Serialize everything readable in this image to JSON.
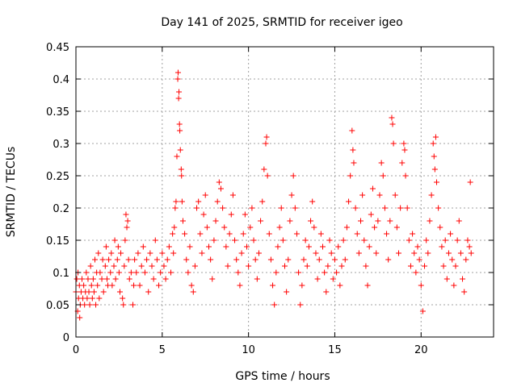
{
  "chart_data": {
    "type": "scatter",
    "title": "Day 141 of 2025, SRMTID for receiver igeo",
    "xlabel": "GPS time / hours",
    "ylabel": "SRMTID / TECUs",
    "xlim": [
      0,
      24.2
    ],
    "ylim": [
      0,
      0.45
    ],
    "xticks": [
      0,
      5,
      10,
      15,
      20
    ],
    "xtick_labels": [
      "0",
      "5",
      "10",
      "15",
      "20"
    ],
    "yticks": [
      0,
      0.05,
      0.1,
      0.15,
      0.2,
      0.25,
      0.3,
      0.35,
      0.4,
      0.45
    ],
    "ytick_labels": [
      "0",
      "0.05",
      "0.1",
      "0.15",
      "0.2",
      "0.25",
      "0.3",
      "0.35",
      "0.4",
      "0.45"
    ],
    "grid": true,
    "marker": "plus",
    "color": "#ff0000",
    "series": [
      {
        "name": "SRMTID",
        "points": [
          [
            0.0,
            0.07
          ],
          [
            0.05,
            0.09
          ],
          [
            0.1,
            0.04
          ],
          [
            0.12,
            0.1
          ],
          [
            0.15,
            0.06
          ],
          [
            0.2,
            0.08
          ],
          [
            0.22,
            0.03
          ],
          [
            0.25,
            0.05
          ],
          [
            0.3,
            0.07
          ],
          [
            0.35,
            0.09
          ],
          [
            0.4,
            0.06
          ],
          [
            0.45,
            0.08
          ],
          [
            0.5,
            0.05
          ],
          [
            0.55,
            0.07
          ],
          [
            0.6,
            0.1
          ],
          [
            0.65,
            0.06
          ],
          [
            0.7,
            0.09
          ],
          [
            0.75,
            0.07
          ],
          [
            0.8,
            0.05
          ],
          [
            0.85,
            0.11
          ],
          [
            0.9,
            0.08
          ],
          [
            0.95,
            0.06
          ],
          [
            1.0,
            0.09
          ],
          [
            1.05,
            0.07
          ],
          [
            1.1,
            0.12
          ],
          [
            1.15,
            0.05
          ],
          [
            1.2,
            0.1
          ],
          [
            1.25,
            0.08
          ],
          [
            1.3,
            0.13
          ],
          [
            1.35,
            0.06
          ],
          [
            1.4,
            0.1
          ],
          [
            1.5,
            0.09
          ],
          [
            1.55,
            0.12
          ],
          [
            1.6,
            0.07
          ],
          [
            1.7,
            0.11
          ],
          [
            1.75,
            0.14
          ],
          [
            1.8,
            0.09
          ],
          [
            1.85,
            0.08
          ],
          [
            1.9,
            0.12
          ],
          [
            2.0,
            0.1
          ],
          [
            2.05,
            0.13
          ],
          [
            2.1,
            0.08
          ],
          [
            2.2,
            0.11
          ],
          [
            2.25,
            0.15
          ],
          [
            2.3,
            0.09
          ],
          [
            2.4,
            0.12
          ],
          [
            2.45,
            0.14
          ],
          [
            2.5,
            0.1
          ],
          [
            2.55,
            0.07
          ],
          [
            2.6,
            0.13
          ],
          [
            2.7,
            0.06
          ],
          [
            2.75,
            0.05
          ],
          [
            2.8,
            0.11
          ],
          [
            2.85,
            0.15
          ],
          [
            2.9,
            0.19
          ],
          [
            2.95,
            0.17
          ],
          [
            3.0,
            0.18
          ],
          [
            3.05,
            0.12
          ],
          [
            3.1,
            0.09
          ],
          [
            3.2,
            0.1
          ],
          [
            3.3,
            0.05
          ],
          [
            3.35,
            0.08
          ],
          [
            3.4,
            0.12
          ],
          [
            3.5,
            0.1
          ],
          [
            3.6,
            0.13
          ],
          [
            3.7,
            0.08
          ],
          [
            3.8,
            0.11
          ],
          [
            3.9,
            0.14
          ],
          [
            4.0,
            0.1
          ],
          [
            4.1,
            0.12
          ],
          [
            4.2,
            0.07
          ],
          [
            4.3,
            0.13
          ],
          [
            4.4,
            0.11
          ],
          [
            4.5,
            0.09
          ],
          [
            4.6,
            0.15
          ],
          [
            4.7,
            0.12
          ],
          [
            4.8,
            0.08
          ],
          [
            4.9,
            0.1
          ],
          [
            5.0,
            0.13
          ],
          [
            5.1,
            0.11
          ],
          [
            5.2,
            0.09
          ],
          [
            5.3,
            0.12
          ],
          [
            5.4,
            0.14
          ],
          [
            5.5,
            0.1
          ],
          [
            5.6,
            0.16
          ],
          [
            5.65,
            0.13
          ],
          [
            5.7,
            0.17
          ],
          [
            5.75,
            0.2
          ],
          [
            5.8,
            0.21
          ],
          [
            5.85,
            0.28
          ],
          [
            5.9,
            0.4
          ],
          [
            5.92,
            0.41
          ],
          [
            5.95,
            0.37
          ],
          [
            5.97,
            0.38
          ],
          [
            6.0,
            0.33
          ],
          [
            6.02,
            0.32
          ],
          [
            6.05,
            0.29
          ],
          [
            6.1,
            0.26
          ],
          [
            6.12,
            0.25
          ],
          [
            6.15,
            0.21
          ],
          [
            6.2,
            0.18
          ],
          [
            6.3,
            0.16
          ],
          [
            6.4,
            0.12
          ],
          [
            6.5,
            0.1
          ],
          [
            6.6,
            0.14
          ],
          [
            6.7,
            0.08
          ],
          [
            6.8,
            0.07
          ],
          [
            6.9,
            0.11
          ],
          [
            7.0,
            0.2
          ],
          [
            7.1,
            0.21
          ],
          [
            7.2,
            0.16
          ],
          [
            7.3,
            0.13
          ],
          [
            7.4,
            0.19
          ],
          [
            7.5,
            0.22
          ],
          [
            7.6,
            0.17
          ],
          [
            7.7,
            0.14
          ],
          [
            7.8,
            0.12
          ],
          [
            7.9,
            0.09
          ],
          [
            8.0,
            0.15
          ],
          [
            8.1,
            0.18
          ],
          [
            8.2,
            0.21
          ],
          [
            8.3,
            0.24
          ],
          [
            8.4,
            0.23
          ],
          [
            8.5,
            0.2
          ],
          [
            8.6,
            0.17
          ],
          [
            8.7,
            0.14
          ],
          [
            8.8,
            0.11
          ],
          [
            8.9,
            0.16
          ],
          [
            9.0,
            0.19
          ],
          [
            9.1,
            0.22
          ],
          [
            9.2,
            0.15
          ],
          [
            9.3,
            0.12
          ],
          [
            9.4,
            0.1
          ],
          [
            9.5,
            0.08
          ],
          [
            9.6,
            0.13
          ],
          [
            9.7,
            0.16
          ],
          [
            9.8,
            0.19
          ],
          [
            9.9,
            0.14
          ],
          [
            10.0,
            0.11
          ],
          [
            10.1,
            0.17
          ],
          [
            10.2,
            0.2
          ],
          [
            10.3,
            0.15
          ],
          [
            10.4,
            0.12
          ],
          [
            10.5,
            0.09
          ],
          [
            10.6,
            0.13
          ],
          [
            10.7,
            0.18
          ],
          [
            10.8,
            0.21
          ],
          [
            10.9,
            0.26
          ],
          [
            11.0,
            0.3
          ],
          [
            11.05,
            0.31
          ],
          [
            11.1,
            0.25
          ],
          [
            11.2,
            0.16
          ],
          [
            11.3,
            0.12
          ],
          [
            11.4,
            0.08
          ],
          [
            11.5,
            0.05
          ],
          [
            11.6,
            0.1
          ],
          [
            11.7,
            0.14
          ],
          [
            11.8,
            0.17
          ],
          [
            11.9,
            0.2
          ],
          [
            12.0,
            0.15
          ],
          [
            12.1,
            0.11
          ],
          [
            12.2,
            0.07
          ],
          [
            12.3,
            0.12
          ],
          [
            12.4,
            0.18
          ],
          [
            12.5,
            0.22
          ],
          [
            12.6,
            0.25
          ],
          [
            12.7,
            0.2
          ],
          [
            12.8,
            0.16
          ],
          [
            12.9,
            0.1
          ],
          [
            13.0,
            0.05
          ],
          [
            13.1,
            0.08
          ],
          [
            13.2,
            0.12
          ],
          [
            13.3,
            0.15
          ],
          [
            13.4,
            0.11
          ],
          [
            13.5,
            0.14
          ],
          [
            13.6,
            0.18
          ],
          [
            13.7,
            0.21
          ],
          [
            13.8,
            0.17
          ],
          [
            13.9,
            0.13
          ],
          [
            14.0,
            0.09
          ],
          [
            14.1,
            0.12
          ],
          [
            14.2,
            0.16
          ],
          [
            14.3,
            0.14
          ],
          [
            14.4,
            0.1
          ],
          [
            14.5,
            0.07
          ],
          [
            14.6,
            0.11
          ],
          [
            14.7,
            0.15
          ],
          [
            14.8,
            0.13
          ],
          [
            14.9,
            0.09
          ],
          [
            15.0,
            0.12
          ],
          [
            15.1,
            0.1
          ],
          [
            15.2,
            0.14
          ],
          [
            15.3,
            0.08
          ],
          [
            15.4,
            0.11
          ],
          [
            15.5,
            0.15
          ],
          [
            15.6,
            0.12
          ],
          [
            15.7,
            0.17
          ],
          [
            15.8,
            0.21
          ],
          [
            15.9,
            0.25
          ],
          [
            16.0,
            0.32
          ],
          [
            16.05,
            0.29
          ],
          [
            16.1,
            0.27
          ],
          [
            16.2,
            0.2
          ],
          [
            16.3,
            0.16
          ],
          [
            16.4,
            0.13
          ],
          [
            16.5,
            0.18
          ],
          [
            16.6,
            0.22
          ],
          [
            16.7,
            0.15
          ],
          [
            16.8,
            0.11
          ],
          [
            16.9,
            0.08
          ],
          [
            17.0,
            0.14
          ],
          [
            17.1,
            0.19
          ],
          [
            17.2,
            0.23
          ],
          [
            17.3,
            0.17
          ],
          [
            17.4,
            0.13
          ],
          [
            17.5,
            0.18
          ],
          [
            17.6,
            0.22
          ],
          [
            17.7,
            0.27
          ],
          [
            17.8,
            0.25
          ],
          [
            17.9,
            0.2
          ],
          [
            18.0,
            0.16
          ],
          [
            18.1,
            0.12
          ],
          [
            18.2,
            0.18
          ],
          [
            18.3,
            0.34
          ],
          [
            18.35,
            0.33
          ],
          [
            18.4,
            0.3
          ],
          [
            18.5,
            0.22
          ],
          [
            18.6,
            0.17
          ],
          [
            18.7,
            0.13
          ],
          [
            18.8,
            0.2
          ],
          [
            18.9,
            0.27
          ],
          [
            19.0,
            0.3
          ],
          [
            19.05,
            0.29
          ],
          [
            19.1,
            0.25
          ],
          [
            19.2,
            0.2
          ],
          [
            19.3,
            0.15
          ],
          [
            19.4,
            0.11
          ],
          [
            19.5,
            0.16
          ],
          [
            19.6,
            0.13
          ],
          [
            19.7,
            0.1
          ],
          [
            19.8,
            0.14
          ],
          [
            19.9,
            0.12
          ],
          [
            20.0,
            0.08
          ],
          [
            20.1,
            0.04
          ],
          [
            20.2,
            0.11
          ],
          [
            20.3,
            0.15
          ],
          [
            20.4,
            0.13
          ],
          [
            20.5,
            0.18
          ],
          [
            20.6,
            0.22
          ],
          [
            20.7,
            0.3
          ],
          [
            20.75,
            0.28
          ],
          [
            20.8,
            0.26
          ],
          [
            20.85,
            0.31
          ],
          [
            20.9,
            0.24
          ],
          [
            21.0,
            0.2
          ],
          [
            21.1,
            0.17
          ],
          [
            21.2,
            0.14
          ],
          [
            21.3,
            0.11
          ],
          [
            21.4,
            0.15
          ],
          [
            21.5,
            0.09
          ],
          [
            21.6,
            0.13
          ],
          [
            21.7,
            0.16
          ],
          [
            21.8,
            0.12
          ],
          [
            21.9,
            0.08
          ],
          [
            22.0,
            0.11
          ],
          [
            22.1,
            0.15
          ],
          [
            22.2,
            0.18
          ],
          [
            22.3,
            0.13
          ],
          [
            22.4,
            0.09
          ],
          [
            22.5,
            0.07
          ],
          [
            22.6,
            0.12
          ],
          [
            22.7,
            0.15
          ],
          [
            22.8,
            0.14
          ],
          [
            22.85,
            0.24
          ],
          [
            22.9,
            0.13
          ]
        ]
      }
    ]
  }
}
